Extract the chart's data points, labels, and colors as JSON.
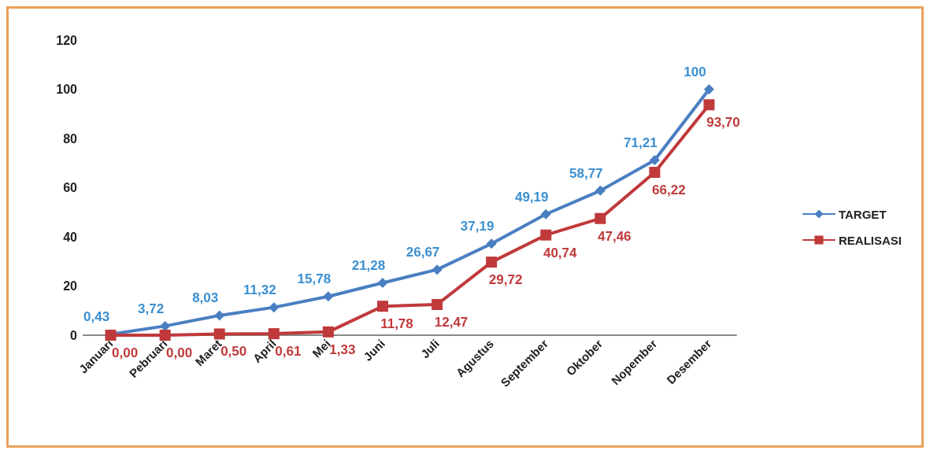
{
  "chart_data": {
    "type": "line",
    "categories": [
      "Januari",
      "Pebruari",
      "Maret",
      "April",
      "Mei",
      "Juni",
      "Juli",
      "Agustus",
      "September",
      "Oktober",
      "Nopember",
      "Desember"
    ],
    "series": [
      {
        "name": "TARGET",
        "color": "#4a7fc1",
        "marker": "diamond",
        "values": [
          0.43,
          3.72,
          8.03,
          11.32,
          15.78,
          21.28,
          26.67,
          37.19,
          49.19,
          58.77,
          71.21,
          100
        ],
        "value_labels": [
          "0,43",
          "3,72",
          "8,03",
          "11,32",
          "15,78",
          "21,28",
          "26,67",
          "37,19",
          "49,19",
          "58,77",
          "71,21",
          "100"
        ]
      },
      {
        "name": "REALISASI",
        "color": "#c0393b",
        "marker": "square",
        "values": [
          0,
          0,
          0.5,
          0.61,
          1.33,
          11.78,
          12.47,
          29.72,
          40.74,
          47.46,
          66.22,
          93.7
        ],
        "value_labels": [
          "0,00",
          "0,00",
          "0,50",
          "0,61",
          "1,33",
          "11,78",
          "12,47",
          "29,72",
          "40,74",
          "47,46",
          "66,22",
          "93,70"
        ]
      }
    ],
    "ylim": [
      0,
      120
    ],
    "yticks": [
      0,
      20,
      40,
      60,
      80,
      100,
      120
    ],
    "grid": false,
    "legend": "right",
    "line_style": "solid"
  }
}
